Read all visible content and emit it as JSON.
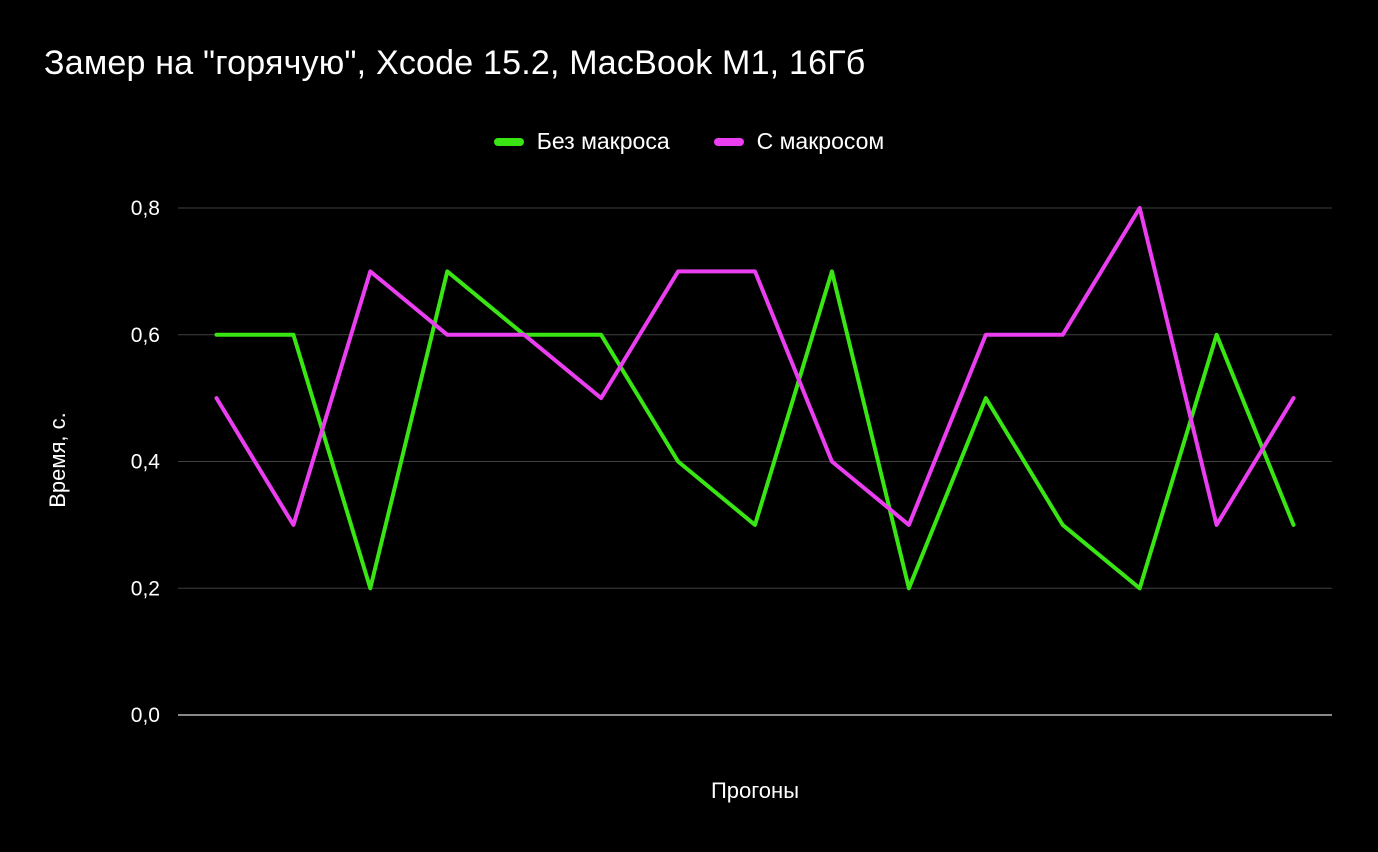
{
  "title": "Замер на \"горячую\", Xcode 15.2, MacBook M1, 16Гб",
  "axes": {
    "y_title": "Время, с.",
    "x_title": "Прогоны",
    "y_ticks": [
      {
        "value": 0.0,
        "label": "0,0"
      },
      {
        "value": 0.2,
        "label": "0,2"
      },
      {
        "value": 0.4,
        "label": "0,4"
      },
      {
        "value": 0.6,
        "label": "0,6"
      },
      {
        "value": 0.8,
        "label": "0,8"
      }
    ]
  },
  "colors": {
    "background": "#000000",
    "text": "#ffffff",
    "grid": "#3f3f3f",
    "baseline": "#b5b5b5"
  },
  "chart_data": {
    "type": "line",
    "title": "Замер на \"горячую\", Xcode 15.2, MacBook M1, 16Гб",
    "xlabel": "Прогоны",
    "ylabel": "Время, с.",
    "ylim": [
      0,
      0.8
    ],
    "grid": true,
    "legend_position": "top-center",
    "x": [
      1,
      2,
      3,
      4,
      5,
      6,
      7,
      8,
      9,
      10,
      11,
      12,
      13,
      14,
      15
    ],
    "series": [
      {
        "name": "Без макроса",
        "color": "#39e513",
        "values": [
          0.6,
          0.6,
          0.2,
          0.7,
          0.6,
          0.6,
          0.4,
          0.3,
          0.7,
          0.2,
          0.5,
          0.3,
          0.2,
          0.6,
          0.3
        ]
      },
      {
        "name": "С макросом",
        "color": "#ea3ef0",
        "values": [
          0.5,
          0.3,
          0.7,
          0.6,
          0.6,
          0.5,
          0.7,
          0.7,
          0.4,
          0.3,
          0.6,
          0.6,
          0.8,
          0.3,
          0.5
        ]
      }
    ]
  }
}
